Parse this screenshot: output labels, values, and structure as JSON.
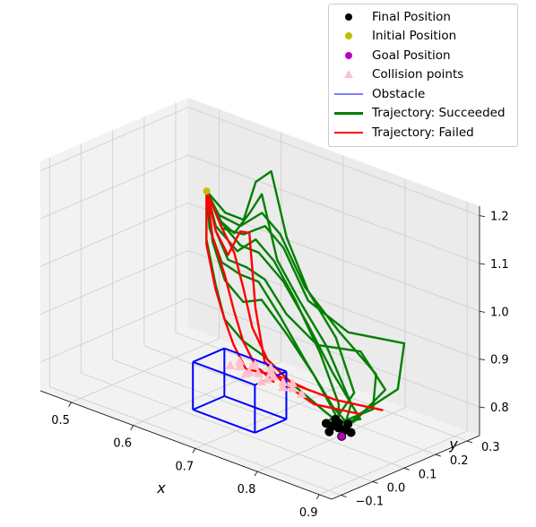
{
  "chart_data": {
    "type": "line3d",
    "xlabel": "x",
    "ylabel": "y",
    "zlabel": "",
    "xlim": [
      0.45,
      0.92
    ],
    "ylim": [
      -0.13,
      0.34
    ],
    "zlim": [
      0.74,
      1.22
    ],
    "xticks": [
      "0.5",
      "0.6",
      "0.7",
      "0.8",
      "0.9"
    ],
    "yticks": [
      "−0.1",
      "0.0",
      "0.1",
      "0.2",
      "0.3"
    ],
    "zticks": [
      "0.8",
      "0.9",
      "1.0",
      "1.1",
      "1.2"
    ],
    "grid": true,
    "legend_position": "top-right",
    "legend": [
      {
        "label": "Final Position",
        "kind": "dot",
        "color": "#000000"
      },
      {
        "label": "Initial Position",
        "kind": "dot",
        "color": "#bfbf00"
      },
      {
        "label": "Goal Position",
        "kind": "dot",
        "color": "#bf00bf"
      },
      {
        "label": "Collision points",
        "kind": "triangle",
        "color": "#ffc0cb"
      },
      {
        "label": "Obstacle",
        "kind": "line",
        "color": "#7f7fff"
      },
      {
        "label": "Trajectory: Succeeded",
        "kind": "line",
        "color": "#008000"
      },
      {
        "label": "Trajectory: Failed",
        "kind": "line",
        "color": "#ff0000"
      }
    ],
    "colors": {
      "succeeded": "#008000",
      "failed": "#ff0000",
      "obstacle": "#0000ff",
      "collision": "#ffc0cb",
      "final": "#000000",
      "initial": "#bfbf00",
      "goal": "#bf00bf"
    },
    "initial_position": [
      0.5,
      0.3,
      1.06
    ],
    "goal_position": [
      0.86,
      0.02,
      0.8
    ],
    "final_positions": [
      [
        0.85,
        0.03,
        0.81
      ],
      [
        0.86,
        0.02,
        0.8
      ],
      [
        0.84,
        0.04,
        0.82
      ],
      [
        0.85,
        0.05,
        0.8
      ],
      [
        0.86,
        0.04,
        0.82
      ],
      [
        0.83,
        0.03,
        0.81
      ],
      [
        0.84,
        0.02,
        0.8
      ],
      [
        0.85,
        0.01,
        0.82
      ],
      [
        0.87,
        0.03,
        0.81
      ],
      [
        0.84,
        0.05,
        0.81
      ]
    ],
    "obstacle_box": {
      "x": [
        0.62,
        0.72
      ],
      "y": [
        0.02,
        0.12
      ],
      "z": [
        0.74,
        0.84
      ]
    },
    "collision_points": [
      [
        0.66,
        0.06,
        0.84
      ],
      [
        0.67,
        0.07,
        0.84
      ],
      [
        0.68,
        0.08,
        0.83
      ],
      [
        0.69,
        0.05,
        0.84
      ],
      [
        0.7,
        0.07,
        0.84
      ],
      [
        0.71,
        0.06,
        0.83
      ],
      [
        0.72,
        0.08,
        0.84
      ],
      [
        0.73,
        0.09,
        0.83
      ],
      [
        0.74,
        0.1,
        0.83
      ],
      [
        0.75,
        0.08,
        0.83
      ],
      [
        0.76,
        0.09,
        0.82
      ],
      [
        0.68,
        0.1,
        0.84
      ],
      [
        0.7,
        0.11,
        0.84
      ],
      [
        0.72,
        0.06,
        0.84
      ],
      [
        0.66,
        0.09,
        0.84
      ],
      [
        0.74,
        0.07,
        0.83
      ],
      [
        0.67,
        0.11,
        0.83
      ],
      [
        0.71,
        0.09,
        0.84
      ]
    ],
    "trajectories": {
      "succeeded": [
        [
          [
            0.5,
            0.3,
            1.06
          ],
          [
            0.53,
            0.28,
            1.02
          ],
          [
            0.57,
            0.25,
            1.02
          ],
          [
            0.62,
            0.2,
            1.1
          ],
          [
            0.65,
            0.18,
            1.16
          ],
          [
            0.69,
            0.15,
            1.05
          ],
          [
            0.74,
            0.12,
            1.0
          ],
          [
            0.8,
            0.09,
            0.94
          ],
          [
            0.86,
            0.05,
            0.86
          ],
          [
            0.86,
            0.02,
            0.8
          ]
        ],
        [
          [
            0.5,
            0.3,
            1.06
          ],
          [
            0.53,
            0.27,
            1.01
          ],
          [
            0.58,
            0.24,
            0.99
          ],
          [
            0.63,
            0.2,
            1.05
          ],
          [
            0.68,
            0.16,
            1.04
          ],
          [
            0.73,
            0.13,
            0.99
          ],
          [
            0.79,
            0.09,
            0.92
          ],
          [
            0.84,
            0.05,
            0.85
          ],
          [
            0.85,
            0.03,
            0.81
          ]
        ],
        [
          [
            0.5,
            0.3,
            1.06
          ],
          [
            0.54,
            0.28,
            1.04
          ],
          [
            0.58,
            0.26,
            1.05
          ],
          [
            0.62,
            0.22,
            1.16
          ],
          [
            0.66,
            0.19,
            1.21
          ],
          [
            0.7,
            0.16,
            1.1
          ],
          [
            0.75,
            0.13,
            1.02
          ],
          [
            0.81,
            0.1,
            0.96
          ],
          [
            0.86,
            0.06,
            0.88
          ],
          [
            0.84,
            0.04,
            0.82
          ]
        ],
        [
          [
            0.5,
            0.3,
            1.06
          ],
          [
            0.52,
            0.27,
            1.0
          ],
          [
            0.56,
            0.23,
            0.96
          ],
          [
            0.61,
            0.19,
            0.97
          ],
          [
            0.66,
            0.15,
            0.99
          ],
          [
            0.71,
            0.12,
            0.95
          ],
          [
            0.77,
            0.08,
            0.9
          ],
          [
            0.83,
            0.05,
            0.84
          ],
          [
            0.86,
            0.04,
            0.82
          ]
        ],
        [
          [
            0.5,
            0.3,
            1.06
          ],
          [
            0.53,
            0.26,
            0.98
          ],
          [
            0.57,
            0.22,
            0.93
          ],
          [
            0.62,
            0.18,
            0.92
          ],
          [
            0.67,
            0.14,
            0.96
          ],
          [
            0.73,
            0.1,
            0.93
          ],
          [
            0.79,
            0.07,
            0.88
          ],
          [
            0.84,
            0.04,
            0.83
          ],
          [
            0.83,
            0.03,
            0.81
          ]
        ],
        [
          [
            0.5,
            0.3,
            1.06
          ],
          [
            0.54,
            0.27,
            1.01
          ],
          [
            0.59,
            0.24,
            1.03
          ],
          [
            0.64,
            0.21,
            1.08
          ],
          [
            0.69,
            0.17,
            1.07
          ],
          [
            0.75,
            0.13,
            1.0
          ],
          [
            0.82,
            0.12,
            0.97
          ],
          [
            0.9,
            0.14,
            0.98
          ],
          [
            0.91,
            0.1,
            0.9
          ],
          [
            0.87,
            0.05,
            0.84
          ],
          [
            0.85,
            0.05,
            0.8
          ]
        ],
        [
          [
            0.5,
            0.3,
            1.06
          ],
          [
            0.53,
            0.28,
            1.03
          ],
          [
            0.58,
            0.25,
            1.04
          ],
          [
            0.63,
            0.22,
            1.1
          ],
          [
            0.68,
            0.18,
            1.09
          ],
          [
            0.74,
            0.14,
            1.02
          ],
          [
            0.81,
            0.11,
            0.97
          ],
          [
            0.88,
            0.09,
            0.92
          ],
          [
            0.89,
            0.06,
            0.86
          ],
          [
            0.85,
            0.01,
            0.82
          ]
        ],
        [
          [
            0.5,
            0.3,
            1.06
          ],
          [
            0.52,
            0.26,
            0.98
          ],
          [
            0.56,
            0.21,
            0.92
          ],
          [
            0.6,
            0.16,
            0.88
          ],
          [
            0.65,
            0.12,
            0.87
          ],
          [
            0.7,
            0.09,
            0.87
          ],
          [
            0.76,
            0.06,
            0.85
          ],
          [
            0.82,
            0.04,
            0.83
          ],
          [
            0.87,
            0.03,
            0.81
          ]
        ],
        [
          [
            0.5,
            0.3,
            1.06
          ],
          [
            0.54,
            0.27,
            1.02
          ],
          [
            0.59,
            0.23,
            1.01
          ],
          [
            0.64,
            0.19,
            1.03
          ],
          [
            0.7,
            0.15,
            1.01
          ],
          [
            0.76,
            0.11,
            0.96
          ],
          [
            0.82,
            0.07,
            0.9
          ],
          [
            0.88,
            0.04,
            0.84
          ],
          [
            0.84,
            0.05,
            0.81
          ]
        ],
        [
          [
            0.5,
            0.3,
            1.06
          ],
          [
            0.53,
            0.27,
            1.0
          ],
          [
            0.57,
            0.23,
            0.97
          ],
          [
            0.62,
            0.19,
            0.99
          ],
          [
            0.67,
            0.15,
            1.0
          ],
          [
            0.72,
            0.12,
            0.96
          ],
          [
            0.78,
            0.1,
            0.93
          ],
          [
            0.85,
            0.1,
            0.95
          ],
          [
            0.9,
            0.08,
            0.9
          ],
          [
            0.87,
            0.04,
            0.83
          ],
          [
            0.85,
            0.03,
            0.81
          ]
        ]
      ],
      "failed": [
        [
          [
            0.5,
            0.3,
            1.06
          ],
          [
            0.53,
            0.26,
            0.99
          ],
          [
            0.57,
            0.22,
            0.94
          ],
          [
            0.61,
            0.17,
            0.9
          ],
          [
            0.65,
            0.12,
            0.87
          ],
          [
            0.69,
            0.08,
            0.85
          ],
          [
            0.73,
            0.06,
            0.84
          ]
        ],
        [
          [
            0.5,
            0.3,
            1.06
          ],
          [
            0.53,
            0.27,
            1.0
          ],
          [
            0.57,
            0.23,
            0.98
          ],
          [
            0.61,
            0.19,
            1.06
          ],
          [
            0.64,
            0.16,
            1.08
          ],
          [
            0.67,
            0.12,
            0.95
          ],
          [
            0.7,
            0.09,
            0.86
          ],
          [
            0.74,
            0.07,
            0.84
          ],
          [
            0.8,
            0.05,
            0.83
          ],
          [
            0.87,
            0.06,
            0.84
          ]
        ],
        [
          [
            0.5,
            0.3,
            1.06
          ],
          [
            0.52,
            0.26,
            0.97
          ],
          [
            0.56,
            0.21,
            0.91
          ],
          [
            0.6,
            0.16,
            0.88
          ],
          [
            0.64,
            0.11,
            0.86
          ],
          [
            0.68,
            0.07,
            0.84
          ],
          [
            0.72,
            0.09,
            0.84
          ],
          [
            0.76,
            0.1,
            0.83
          ]
        ],
        [
          [
            0.5,
            0.3,
            1.06
          ],
          [
            0.54,
            0.27,
            1.01
          ],
          [
            0.58,
            0.23,
            0.99
          ],
          [
            0.62,
            0.18,
            0.95
          ],
          [
            0.66,
            0.13,
            0.9
          ],
          [
            0.7,
            0.1,
            0.86
          ],
          [
            0.75,
            0.08,
            0.84
          ],
          [
            0.82,
            0.08,
            0.84
          ],
          [
            0.9,
            0.07,
            0.86
          ]
        ]
      ]
    }
  }
}
